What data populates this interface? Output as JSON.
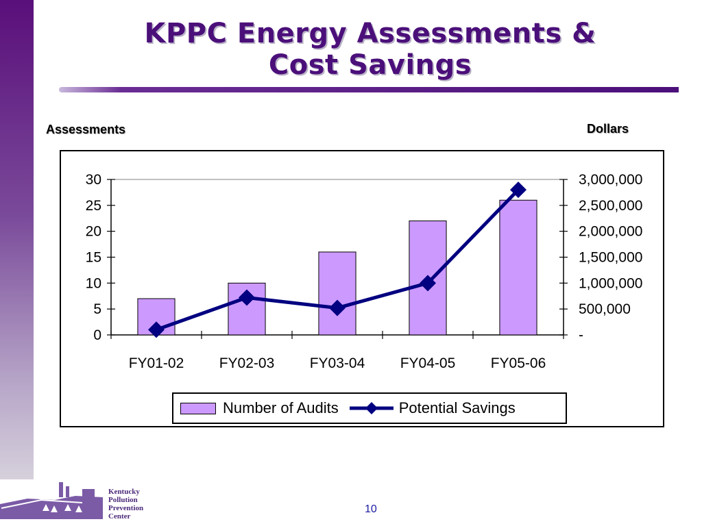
{
  "slide": {
    "title_line1": "KPPC Energy Assessments &",
    "title_line2": "Cost Savings",
    "page_number": "10"
  },
  "logo": {
    "lines": [
      "Kentucky",
      "Pollution",
      "Prevention",
      "Center"
    ]
  },
  "colors": {
    "bar_fill": "#cc99ff",
    "line": "#000080",
    "title": "#4b0f7a"
  },
  "chart_data": {
    "type": "bar",
    "categories": [
      "FY01-02",
      "FY02-03",
      "FY03-04",
      "FY04-05",
      "FY05-06"
    ],
    "series": [
      {
        "name": "Number of Audits",
        "type": "bar",
        "axis": "left",
        "values": [
          7,
          10,
          16,
          22,
          26
        ]
      },
      {
        "name": "Potential Savings",
        "type": "line",
        "axis": "right",
        "values": [
          100000,
          720000,
          520000,
          1000000,
          2800000
        ]
      }
    ],
    "ylabel": "Assessments",
    "y2label": "Dollars",
    "ylim": [
      0,
      30
    ],
    "y2lim": [
      0,
      3000000
    ],
    "yticks": [
      "0",
      "5",
      "10",
      "15",
      "20",
      "25",
      "30"
    ],
    "y2ticks": [
      "-",
      "500,000",
      "1,000,000",
      "1,500,000",
      "2,000,000",
      "2,500,000",
      "3,000,000"
    ],
    "legend": "bottom",
    "grid": true
  }
}
